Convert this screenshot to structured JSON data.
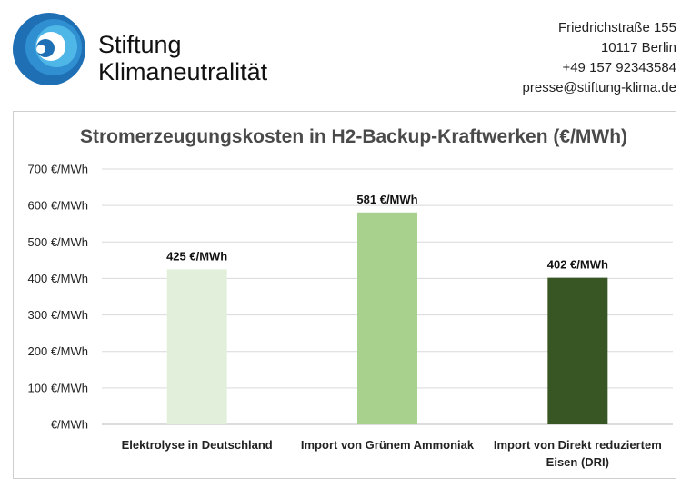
{
  "header": {
    "brand_line1": "Stiftung",
    "brand_line2": "Klimaneutralität",
    "logo_icon": "spiral-logo-icon"
  },
  "contact": {
    "street": "Friedrichstraße 155",
    "city": "10117 Berlin",
    "phone": "+49 157 92343584",
    "email": "presse@stiftung-klima.de"
  },
  "colors": {
    "logo_dark": "#1f6fb4",
    "logo_light": "#4fb7e8",
    "grid": "#d9d9d9",
    "axis": "#c8c8c8"
  },
  "chart_data": {
    "type": "bar",
    "title": "Stromerzeugungskosten in H2-Backup-Kraftwerken (€/MWh)",
    "xlabel": "",
    "ylabel": "",
    "ylim": [
      0,
      700
    ],
    "yticks": [
      0,
      100,
      200,
      300,
      400,
      500,
      600,
      700
    ],
    "ytick_labels": [
      "€/MWh",
      "100 €/MWh",
      "200 €/MWh",
      "300 €/MWh",
      "400 €/MWh",
      "500 €/MWh",
      "600 €/MWh",
      "700 €/MWh"
    ],
    "grid": true,
    "categories": [
      [
        "Elektrolyse in Deutschland"
      ],
      [
        "Import von Grünem Ammoniak"
      ],
      [
        "Import von Direkt reduziertem",
        "Eisen (DRI)"
      ]
    ],
    "values": [
      425,
      581,
      402
    ],
    "data_labels": [
      "425 €/MWh",
      "581 €/MWh",
      "402 €/MWh"
    ],
    "bar_colors": [
      "#e2efda",
      "#a9d18e",
      "#375623"
    ]
  }
}
